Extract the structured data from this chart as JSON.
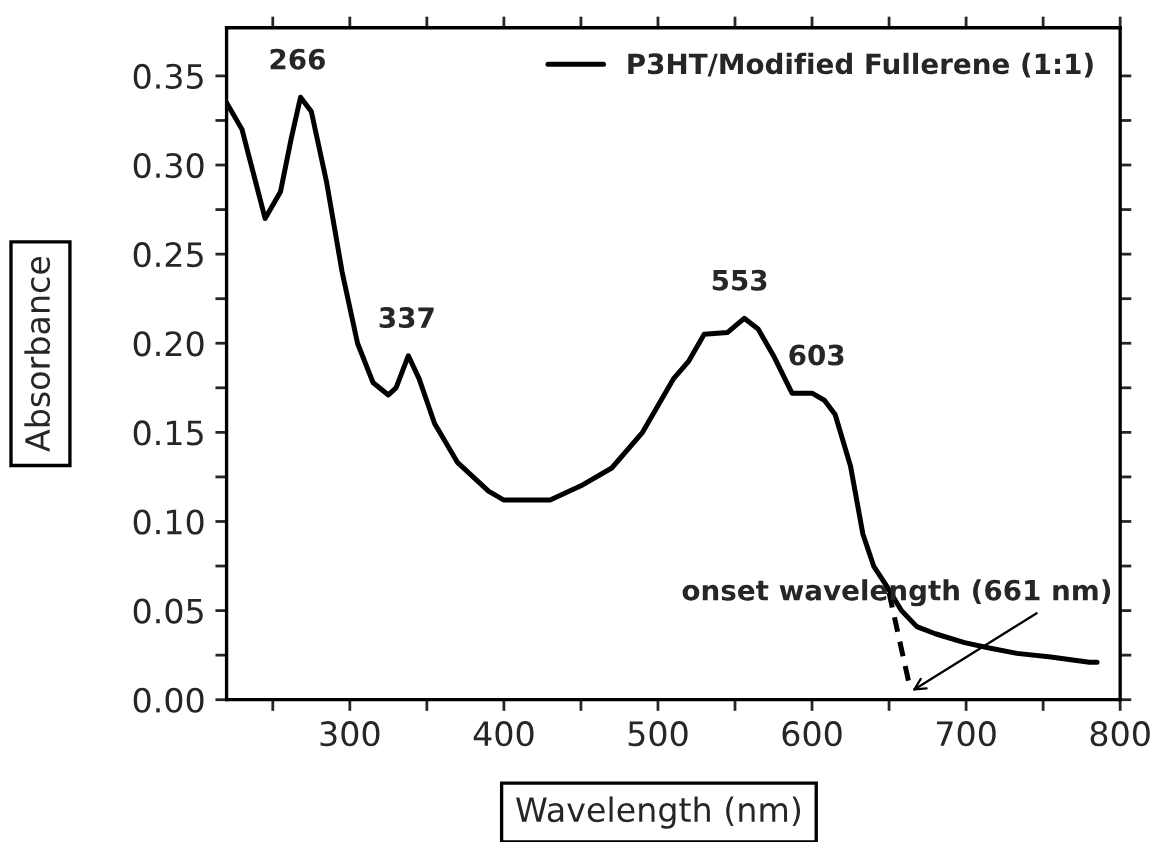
{
  "chart_data": {
    "type": "line",
    "xlabel": "Wavelength (nm)",
    "ylabel": "Absorbance",
    "series": [
      {
        "name": "P3HT/Modified Fullerene (1:1)",
        "color": "#000000",
        "line_style": "solid",
        "x": [
          220,
          230,
          245,
          255,
          262,
          268,
          275,
          285,
          295,
          305,
          315,
          325,
          330,
          338,
          345,
          355,
          370,
          390,
          400,
          430,
          450,
          470,
          490,
          510,
          520,
          530,
          545,
          556,
          565,
          575,
          587,
          600,
          608,
          615,
          625,
          633,
          640,
          649,
          658,
          668,
          680,
          699,
          715,
          733,
          755,
          780,
          785
        ],
        "values": [
          0.335,
          0.32,
          0.27,
          0.285,
          0.315,
          0.338,
          0.33,
          0.29,
          0.24,
          0.2,
          0.178,
          0.171,
          0.175,
          0.193,
          0.18,
          0.155,
          0.133,
          0.117,
          0.112,
          0.112,
          0.12,
          0.13,
          0.15,
          0.18,
          0.19,
          0.205,
          0.206,
          0.214,
          0.208,
          0.193,
          0.172,
          0.172,
          0.168,
          0.16,
          0.131,
          0.093,
          0.075,
          0.063,
          0.05,
          0.041,
          0.037,
          0.032,
          0.029,
          0.026,
          0.024,
          0.021,
          0.021
        ]
      },
      {
        "type": "line",
        "color": "#000000",
        "line_style": "dashed",
        "x": [
          650,
          663
        ],
        "values": [
          0.06,
          0.009
        ]
      }
    ],
    "annotations": [
      {
        "text": "266",
        "x": 266,
        "y": 0.338
      },
      {
        "text": "337",
        "x": 337,
        "y": 0.193
      },
      {
        "text": "553",
        "x": 553,
        "y": 0.214
      },
      {
        "text": "603",
        "x": 603,
        "y": 0.172
      },
      {
        "text": "onset wavelength (661 nm)",
        "x": 665,
        "y": 0.005
      }
    ],
    "xlim": [
      220,
      800
    ],
    "ylim": [
      0,
      0.377
    ],
    "xticks": [
      {
        "value": 250,
        "label": null
      },
      300,
      {
        "value": 350,
        "label": null
      },
      400,
      {
        "value": 450,
        "label": null
      },
      500,
      {
        "value": 550,
        "label": null
      },
      600,
      {
        "value": 650,
        "label": null
      },
      700,
      {
        "value": 750,
        "label": null
      },
      800
    ],
    "yticks": [
      {
        "value": 0,
        "label": "0.00"
      },
      {
        "value": 0.025,
        "label": null
      },
      {
        "value": 0.05,
        "label": "0.05"
      },
      {
        "value": 0.075,
        "label": null
      },
      {
        "value": 0.1,
        "label": "0.10"
      },
      {
        "value": 0.125,
        "label": null
      },
      {
        "value": 0.15,
        "label": "0.15"
      },
      {
        "value": 0.175,
        "label": null
      },
      {
        "value": 0.2,
        "label": "0.20"
      },
      {
        "value": 0.225,
        "label": null
      },
      {
        "value": 0.25,
        "label": "0.25"
      },
      {
        "value": 0.275,
        "label": null
      },
      {
        "value": 0.3,
        "label": "0.30"
      },
      {
        "value": 0.325,
        "label": null
      },
      {
        "value": 0.35,
        "label": "0.35"
      }
    ],
    "grid": false,
    "legend": "top right"
  }
}
